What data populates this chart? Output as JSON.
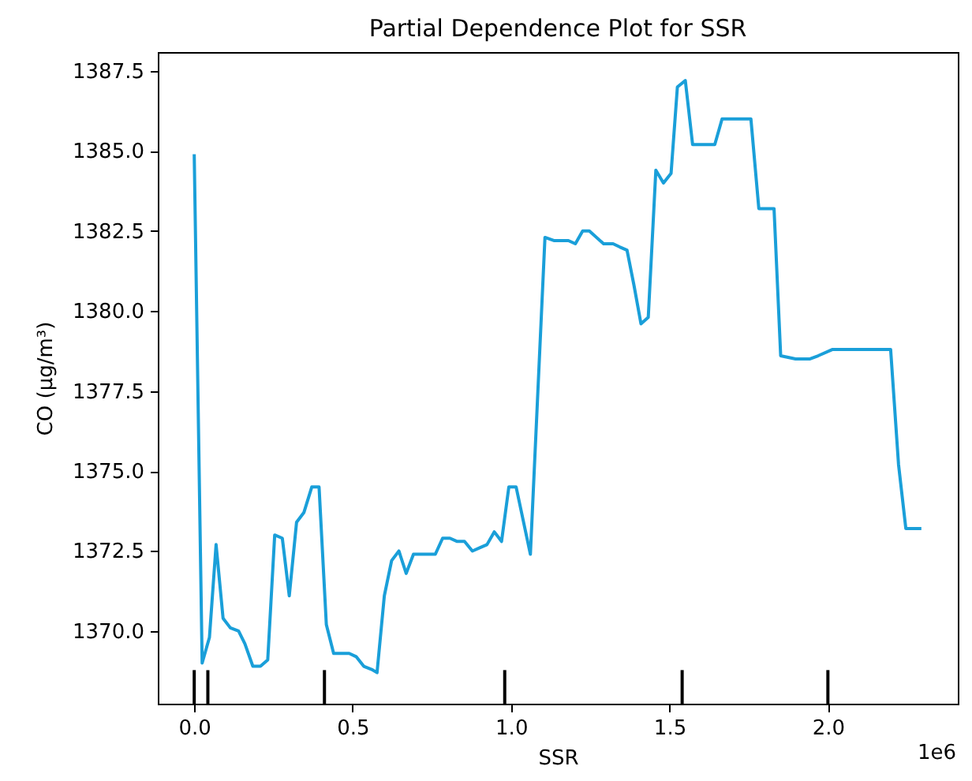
{
  "chart_data": {
    "type": "line",
    "title": "Partial Dependence Plot for SSR",
    "xlabel": "SSR",
    "ylabel": "CO (μg/m³)",
    "annotations": [
      "1e6"
    ],
    "xlim": [
      -0.115,
      2.41
    ],
    "ylim": [
      1367.73,
      1388.09
    ],
    "xticks": [
      {
        "value": 0,
        "label": "0.0"
      },
      {
        "value": 0.5,
        "label": "0.5"
      },
      {
        "value": 1,
        "label": "1.0"
      },
      {
        "value": 1.5,
        "label": "1.5"
      },
      {
        "value": 2,
        "label": "2.0"
      }
    ],
    "yticks": [
      {
        "value": 1370,
        "label": "1370.0"
      },
      {
        "value": 1372.5,
        "label": "1372.5"
      },
      {
        "value": 1375,
        "label": "1375.0"
      },
      {
        "value": 1377.5,
        "label": "1377.5"
      },
      {
        "value": 1380,
        "label": "1380.0"
      },
      {
        "value": 1382.5,
        "label": "1382.5"
      },
      {
        "value": 1385,
        "label": "1385.0"
      },
      {
        "value": 1387.5,
        "label": "1387.5"
      }
    ],
    "grid": false,
    "series": [
      {
        "color": "#1a9fd9",
        "x": [
          0,
          0.025,
          0.048,
          0.069,
          0.091,
          0.114,
          0.14,
          0.16,
          0.185,
          0.209,
          0.232,
          0.254,
          0.278,
          0.3,
          0.323,
          0.346,
          0.371,
          0.394,
          0.417,
          0.44,
          0.465,
          0.489,
          0.511,
          0.535,
          0.56,
          0.577,
          0.6,
          0.623,
          0.646,
          0.669,
          0.692,
          0.715,
          0.761,
          0.784,
          0.807,
          0.83,
          0.853,
          0.878,
          0.901,
          0.924,
          0.947,
          0.97,
          0.993,
          1.016,
          1.061,
          1.107,
          1.135,
          1.181,
          1.203,
          1.226,
          1.247,
          1.292,
          1.322,
          1.343,
          1.366,
          1.388,
          1.41,
          1.433,
          1.457,
          1.481,
          1.505,
          1.525,
          1.55,
          1.573,
          1.643,
          1.666,
          1.712,
          1.757,
          1.782,
          1.83,
          1.851,
          1.898,
          1.942,
          1.969,
          2.015,
          2.198,
          2.223,
          2.246,
          2.295
        ],
        "values": [
          1384.9,
          1369.0,
          1369.8,
          1372.7,
          1370.4,
          1370.1,
          1370.0,
          1369.6,
          1368.9,
          1368.9,
          1369.1,
          1373.0,
          1372.9,
          1371.1,
          1373.4,
          1373.7,
          1374.5,
          1374.5,
          1370.2,
          1369.3,
          1369.3,
          1369.3,
          1369.2,
          1368.9,
          1368.8,
          1368.7,
          1371.1,
          1372.2,
          1372.5,
          1371.8,
          1372.4,
          1372.4,
          1372.4,
          1372.9,
          1372.9,
          1372.8,
          1372.8,
          1372.5,
          1372.6,
          1372.7,
          1373.1,
          1372.8,
          1374.5,
          1374.5,
          1372.4,
          1382.3,
          1382.2,
          1382.2,
          1382.1,
          1382.5,
          1382.5,
          1382.1,
          1382.1,
          1382.0,
          1381.9,
          1380.8,
          1379.6,
          1379.8,
          1384.4,
          1384.0,
          1384.3,
          1387.0,
          1387.2,
          1385.2,
          1385.2,
          1386.0,
          1386.0,
          1386.0,
          1383.2,
          1383.2,
          1378.6,
          1378.5,
          1378.5,
          1378.6,
          1378.8,
          1378.8,
          1375.2,
          1373.2,
          1373.2
        ]
      },
      {
        "type": "bar",
        "color": "#000000",
        "x": [
          0,
          0.043,
          0.411,
          0.98,
          1.54,
          2.0
        ],
        "base": [
          1367.73,
          1367.73,
          1367.73,
          1367.73,
          1367.73,
          1367.73
        ],
        "values": [
          1.05,
          1.05,
          1.05,
          1.05,
          1.05,
          1.05
        ]
      }
    ]
  }
}
